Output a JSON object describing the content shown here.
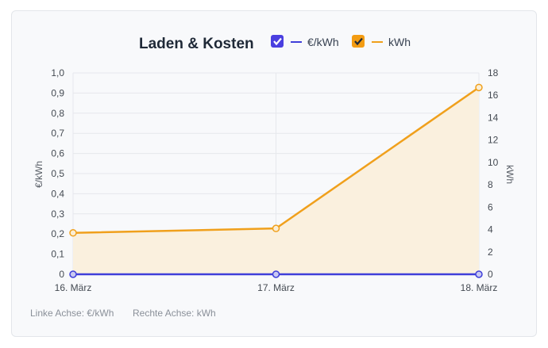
{
  "chart_data": {
    "type": "line",
    "title": "Laden & Kosten",
    "categories": [
      "16. März",
      "17. März",
      "18. März"
    ],
    "series": [
      {
        "name": "€/kWh",
        "axis": "left",
        "color": "#3f3fd9",
        "checkbox_color": "#4a3fe0",
        "values": [
          0,
          0,
          0
        ],
        "fill": false
      },
      {
        "name": "kWh",
        "axis": "right",
        "color": "#f0a01c",
        "checkbox_color": "#f39c12",
        "values": [
          3.7,
          4.1,
          16.7
        ],
        "fill": true,
        "fill_color": "#faf0de"
      }
    ],
    "left_axis": {
      "label": "€/kWh",
      "ylim": [
        0,
        1.0
      ],
      "ticks": [
        "0",
        "0,1",
        "0,2",
        "0,3",
        "0,4",
        "0,5",
        "0,6",
        "0,7",
        "0,8",
        "0,9",
        "1,0"
      ]
    },
    "right_axis": {
      "label": "kWh",
      "ylim": [
        0,
        18
      ],
      "ticks": [
        "0",
        "2",
        "4",
        "6",
        "8",
        "10",
        "12",
        "14",
        "16",
        "18"
      ]
    },
    "grid": true,
    "legend": "top"
  },
  "footer": {
    "left_note": "Linke Achse: €/kWh",
    "right_note": "Rechte Achse: kWh"
  }
}
